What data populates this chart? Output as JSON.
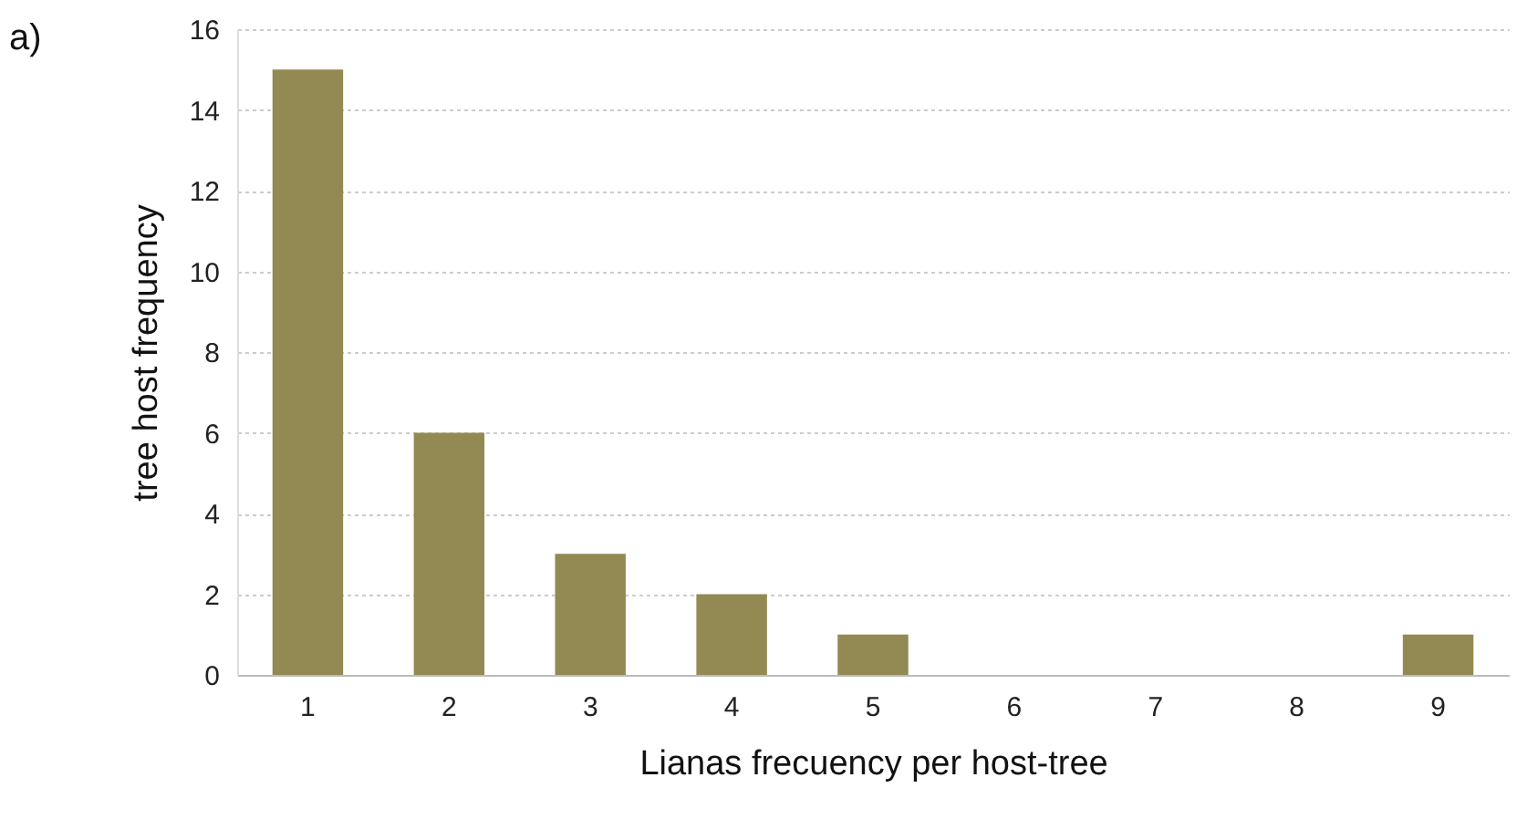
{
  "chart_data": {
    "type": "bar",
    "xlabel": "Lianas frecuency per host-tree",
    "ylabel": "tree host frequency",
    "annotations": [
      "a)"
    ],
    "categories": [
      "1",
      "2",
      "3",
      "4",
      "5",
      "6",
      "7",
      "8",
      "9"
    ],
    "values": [
      15,
      6,
      3,
      2,
      1,
      0,
      0,
      0,
      1
    ],
    "color": "#938953",
    "ylim": [
      0,
      16
    ],
    "yticks": [
      0,
      2,
      4,
      6,
      8,
      10,
      12,
      14,
      16
    ],
    "grid": "y"
  }
}
